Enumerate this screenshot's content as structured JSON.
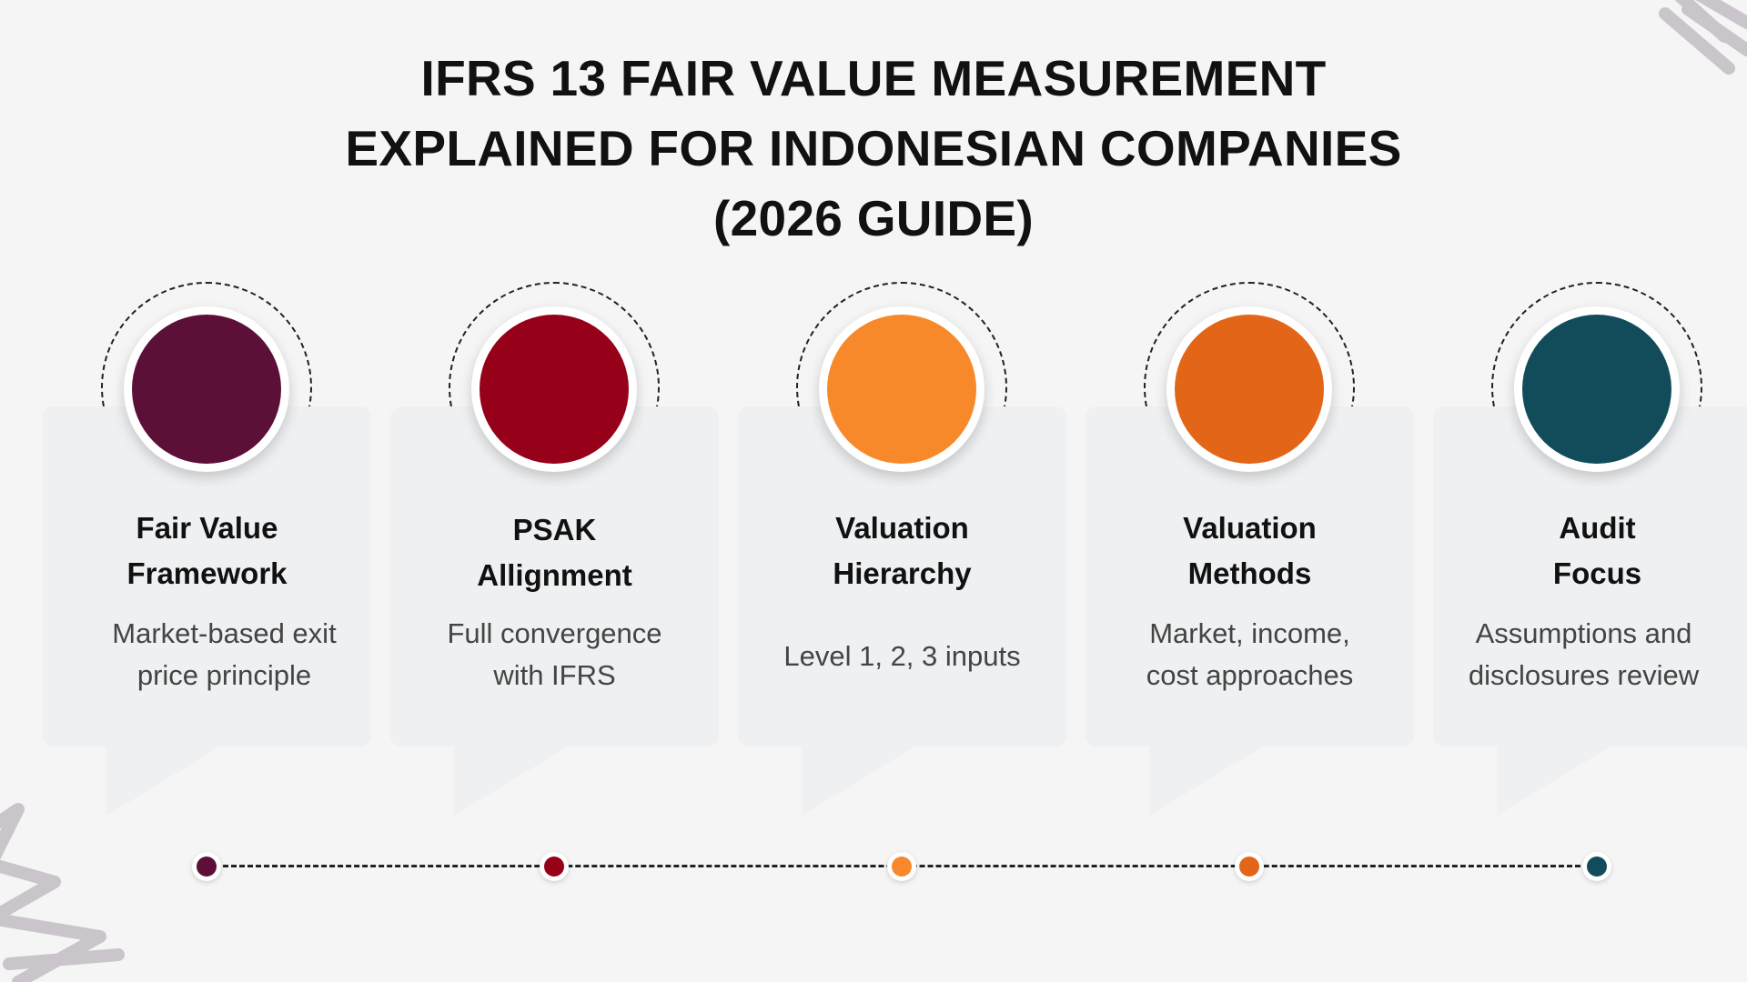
{
  "title": {
    "line1": "IFRS 13 FAIR VALUE MEASUREMENT",
    "line2": "EXPLAINED FOR INDONESIAN COMPANIES",
    "line3": "(2026 GUIDE)"
  },
  "steps": [
    {
      "title_line1": "Fair Value",
      "title_line2": "Framework",
      "desc_line1": "Market-based exit",
      "desc_line2": "price principle",
      "color": "#5c1038"
    },
    {
      "title_line1": "PSAK",
      "title_line2": "Allignment",
      "desc_line1": "Full convergence",
      "desc_line2": "with IFRS",
      "color": "#960019"
    },
    {
      "title_line1": "Valuation",
      "title_line2": "Hierarchy",
      "desc_line1": "Level 1, 2, 3 inputs",
      "desc_line2": "",
      "color": "#f8892a"
    },
    {
      "title_line1": "Valuation",
      "title_line2": "Methods",
      "desc_line1": "Market, income,",
      "desc_line2": "cost approaches",
      "color": "#e26518"
    },
    {
      "title_line1": "Audit",
      "title_line2": "Focus",
      "desc_line1": "Assumptions and",
      "desc_line2": "disclosures review",
      "color": "#124c5b"
    }
  ],
  "decoration_color": "#c9c5ca"
}
